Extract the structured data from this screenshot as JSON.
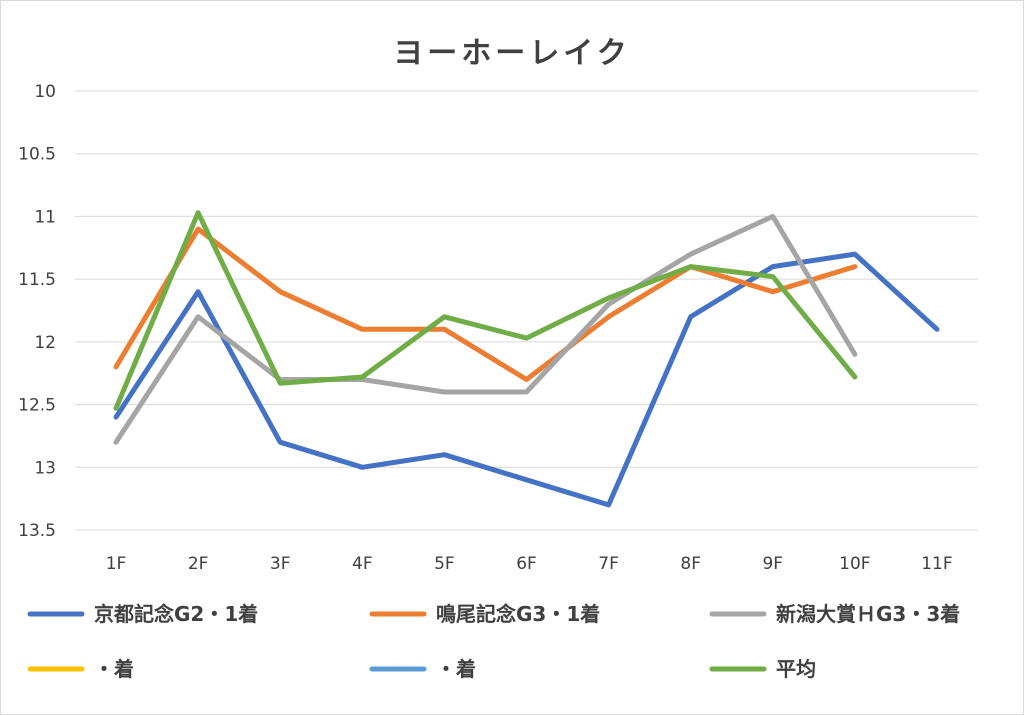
{
  "chart_data": {
    "type": "line",
    "title": "ヨーホーレイク",
    "xlabel": "",
    "ylabel": "",
    "categories": [
      "1F",
      "2F",
      "3F",
      "4F",
      "5F",
      "6F",
      "7F",
      "8F",
      "9F",
      "10F",
      "11F"
    ],
    "y_reversed": true,
    "ylim": [
      10,
      13.5
    ],
    "yticks": [
      {
        "value": 10,
        "label": "10"
      },
      {
        "value": 10.5,
        "label": "10.5"
      },
      {
        "value": 11,
        "label": "11"
      },
      {
        "value": 11.5,
        "label": "11.5"
      },
      {
        "value": 12,
        "label": "12"
      },
      {
        "value": 12.5,
        "label": "12.5"
      },
      {
        "value": 13,
        "label": "13"
      },
      {
        "value": 13.5,
        "label": "13.5"
      }
    ],
    "grid": true,
    "legend_position": "bottom",
    "series": [
      {
        "name": "京都記念G2・1着",
        "color": "#4472c4",
        "values": [
          12.6,
          11.6,
          12.8,
          13.0,
          12.9,
          13.1,
          13.3,
          11.8,
          11.4,
          11.3,
          11.9
        ]
      },
      {
        "name": "鳴尾記念G3・1着",
        "color": "#ed7d31",
        "values": [
          12.2,
          11.1,
          11.6,
          11.9,
          11.9,
          12.3,
          11.8,
          11.4,
          11.6,
          11.4,
          null
        ]
      },
      {
        "name": "新潟大賞ＨG3・3着",
        "color": "#a5a5a5",
        "values": [
          12.8,
          11.8,
          12.3,
          12.3,
          12.4,
          12.4,
          11.7,
          11.3,
          11.0,
          12.1,
          null
        ]
      },
      {
        "name": "・着",
        "color": "#ffc000",
        "values": [
          null,
          null,
          null,
          null,
          null,
          null,
          null,
          null,
          null,
          null,
          null
        ]
      },
      {
        "name": "・着",
        "color": "#5b9bd5",
        "values": [
          null,
          null,
          null,
          null,
          null,
          null,
          null,
          null,
          null,
          null,
          null
        ]
      },
      {
        "name": "平均",
        "color": "#70ad47",
        "values": [
          12.53,
          10.97,
          12.33,
          12.28,
          11.8,
          11.97,
          11.65,
          11.4,
          11.48,
          12.28,
          null
        ]
      }
    ]
  }
}
